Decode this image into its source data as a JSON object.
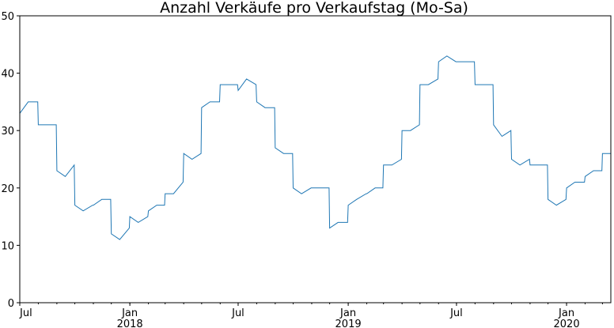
{
  "chart_data": {
    "type": "line",
    "title": "Anzahl Verkäufe pro Verkaufstag (Mo-Sa)",
    "xlabel": "",
    "ylabel": "",
    "ylim": [
      0,
      50
    ],
    "xlim": [
      "2017-07-01",
      "2020-03-15"
    ],
    "grid": false,
    "y_ticks": [
      "0",
      "10",
      "20",
      "30",
      "40",
      "50"
    ],
    "x_ticks": [
      {
        "date": "2017-07-01",
        "label": "Jul",
        "sub": ""
      },
      {
        "date": "2018-01-01",
        "label": "Jan",
        "sub": "2018"
      },
      {
        "date": "2018-07-01",
        "label": "Jul",
        "sub": ""
      },
      {
        "date": "2019-01-01",
        "label": "Jan",
        "sub": "2019"
      },
      {
        "date": "2019-07-01",
        "label": "Jul",
        "sub": ""
      },
      {
        "date": "2020-01-01",
        "label": "Jan",
        "sub": "2020"
      }
    ],
    "line_color": "#1f77b4",
    "series": [
      {
        "color": "#1f77b4",
        "x": [
          "2017-07-01",
          "2017-07-15",
          "2017-07-31",
          "2017-08-01",
          "2017-08-15",
          "2017-08-31",
          "2017-09-01",
          "2017-09-15",
          "2017-09-30",
          "2017-10-01",
          "2017-10-15",
          "2017-10-31",
          "2017-11-01",
          "2017-11-15",
          "2017-11-30",
          "2017-12-01",
          "2017-12-15",
          "2017-12-31",
          "2018-01-01",
          "2018-01-15",
          "2018-01-31",
          "2018-02-01",
          "2018-02-15",
          "2018-02-28",
          "2018-03-01",
          "2018-03-15",
          "2018-03-31",
          "2018-04-01",
          "2018-04-15",
          "2018-04-30",
          "2018-05-01",
          "2018-05-15",
          "2018-05-31",
          "2018-06-01",
          "2018-06-15",
          "2018-06-30",
          "2018-07-01",
          "2018-07-15",
          "2018-07-31",
          "2018-08-01",
          "2018-08-15",
          "2018-08-31",
          "2018-09-01",
          "2018-09-15",
          "2018-09-30",
          "2018-10-01",
          "2018-10-15",
          "2018-10-31",
          "2018-11-01",
          "2018-11-15",
          "2018-11-30",
          "2018-12-01",
          "2018-12-15",
          "2018-12-31",
          "2019-01-01",
          "2019-01-15",
          "2019-01-31",
          "2019-02-01",
          "2019-02-15",
          "2019-02-28",
          "2019-03-01",
          "2019-03-15",
          "2019-03-31",
          "2019-04-01",
          "2019-04-15",
          "2019-04-30",
          "2019-05-01",
          "2019-05-15",
          "2019-05-31",
          "2019-06-01",
          "2019-06-15",
          "2019-06-30",
          "2019-07-01",
          "2019-07-15",
          "2019-07-31",
          "2019-08-01",
          "2019-08-15",
          "2019-08-31",
          "2019-09-01",
          "2019-09-15",
          "2019-09-30",
          "2019-10-01",
          "2019-10-15",
          "2019-10-31",
          "2019-11-01",
          "2019-11-15",
          "2019-11-30",
          "2019-12-01",
          "2019-12-15",
          "2019-12-31",
          "2020-01-01",
          "2020-01-15",
          "2020-01-31",
          "2020-02-01",
          "2020-02-15",
          "2020-02-29",
          "2020-03-01",
          "2020-03-15"
        ],
        "values": [
          33,
          35,
          35,
          31,
          31,
          31,
          23,
          22,
          24,
          17,
          16,
          17,
          17,
          18,
          18,
          12,
          11,
          13,
          15,
          14,
          15,
          16,
          17,
          17,
          19,
          19,
          21,
          26,
          25,
          26,
          34,
          35,
          35,
          38,
          38,
          38,
          37,
          39,
          38,
          35,
          34,
          34,
          27,
          26,
          26,
          20,
          19,
          20,
          20,
          20,
          20,
          13,
          14,
          14,
          17,
          18,
          19,
          19,
          20,
          20,
          24,
          24,
          25,
          30,
          30,
          31,
          38,
          38,
          39,
          42,
          43,
          42,
          42,
          42,
          42,
          38,
          38,
          38,
          31,
          29,
          30,
          25,
          24,
          25,
          24,
          24,
          24,
          18,
          17,
          18,
          20,
          21,
          21,
          22,
          23,
          23,
          26,
          26
        ]
      }
    ]
  }
}
